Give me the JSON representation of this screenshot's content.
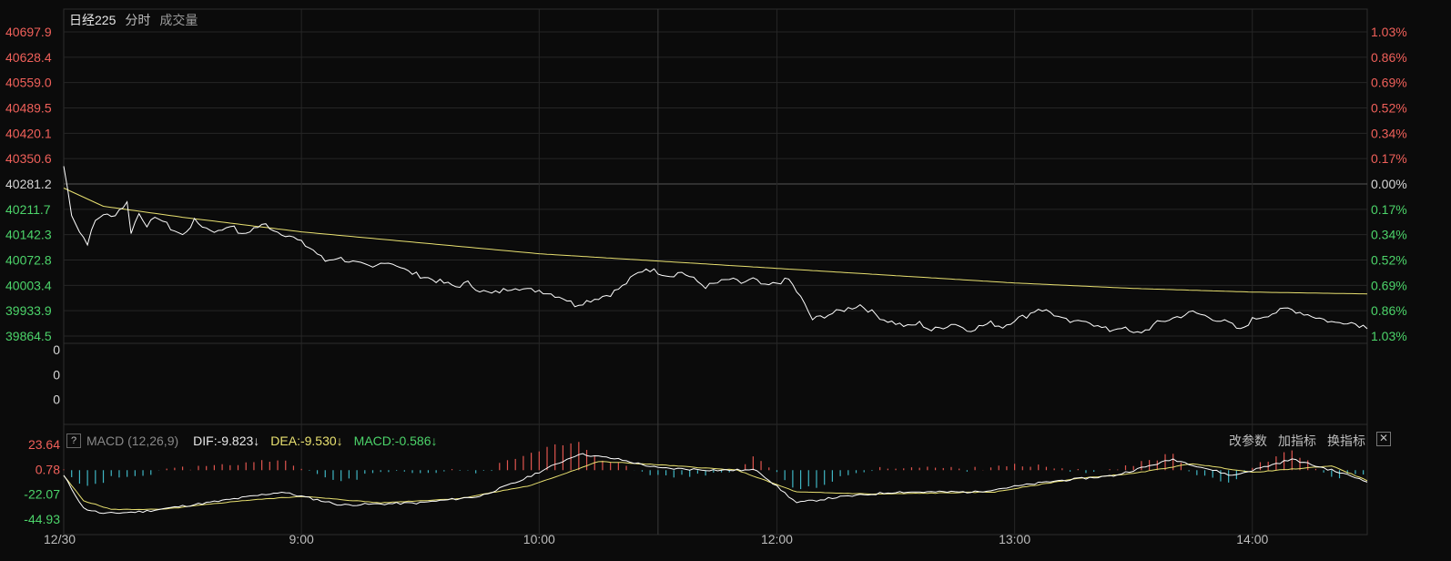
{
  "header": {
    "title": "日经225",
    "mode": "分时",
    "volume_tab": "成交量"
  },
  "colors": {
    "up": "#f0605a",
    "down": "#4cd46a",
    "neutral": "#d6d6d6",
    "price_line": "#ffffff",
    "avg_line": "#e8e070",
    "grid": "#262626",
    "macd_pos": "#e0554f",
    "macd_neg": "#3fb6c4"
  },
  "macd_header": {
    "help": "?",
    "label": "MACD (12,26,9)",
    "dif": "DIF:-9.823↓",
    "dea": "DEA:-9.530↓",
    "macd": "MACD:-0.586↓",
    "buttons": [
      "改参数",
      "加指标",
      "换指标"
    ],
    "close": "✕"
  },
  "chart_data": [
    {
      "type": "line",
      "name": "price",
      "y_ticks_left": [
        "40697.9",
        "40628.4",
        "40559.0",
        "40489.5",
        "40420.1",
        "40350.6",
        "40281.2",
        "40211.7",
        "40142.3",
        "40072.8",
        "40003.4",
        "39933.9",
        "39864.5"
      ],
      "y_ticks_right": [
        "1.03%",
        "0.86%",
        "0.69%",
        "0.52%",
        "0.34%",
        "0.17%",
        "0.00%",
        "0.17%",
        "0.34%",
        "0.52%",
        "0.69%",
        "0.86%",
        "1.03%"
      ],
      "ylim": [
        39864.5,
        40697.9
      ],
      "base": 40281.2,
      "x_ticks": [
        "12/30",
        "9:00",
        "10:00",
        "",
        "12:00",
        "13:00",
        "14:00"
      ],
      "x_tick_pos": [
        0,
        60,
        120,
        150,
        180,
        240,
        300
      ],
      "x_count": 330,
      "price_anchors": [
        [
          0,
          40330
        ],
        [
          2,
          40200
        ],
        [
          4,
          40150
        ],
        [
          6,
          40120
        ],
        [
          8,
          40180
        ],
        [
          10,
          40200
        ],
        [
          12,
          40190
        ],
        [
          14,
          40210
        ],
        [
          16,
          40230
        ],
        [
          17,
          40150
        ],
        [
          19,
          40200
        ],
        [
          21,
          40170
        ],
        [
          24,
          40190
        ],
        [
          27,
          40160
        ],
        [
          30,
          40140
        ],
        [
          33,
          40180
        ],
        [
          36,
          40160
        ],
        [
          39,
          40150
        ],
        [
          42,
          40170
        ],
        [
          45,
          40140
        ],
        [
          48,
          40160
        ],
        [
          51,
          40170
        ],
        [
          54,
          40150
        ],
        [
          57,
          40140
        ],
        [
          60,
          40120
        ],
        [
          63,
          40100
        ],
        [
          66,
          40070
        ],
        [
          69,
          40080
        ],
        [
          72,
          40070
        ],
        [
          75,
          40060
        ],
        [
          78,
          40050
        ],
        [
          81,
          40070
        ],
        [
          84,
          40060
        ],
        [
          87,
          40040
        ],
        [
          90,
          40030
        ],
        [
          93,
          40020
        ],
        [
          96,
          40010
        ],
        [
          99,
          40000
        ],
        [
          102,
          40010
        ],
        [
          105,
          39990
        ],
        [
          108,
          39980
        ],
        [
          111,
          39990
        ],
        [
          114,
          40000
        ],
        [
          117,
          39990
        ],
        [
          120,
          39990
        ],
        [
          123,
          39980
        ],
        [
          126,
          39970
        ],
        [
          129,
          39950
        ],
        [
          132,
          39960
        ],
        [
          135,
          39970
        ],
        [
          138,
          39980
        ],
        [
          141,
          40000
        ],
        [
          144,
          40030
        ],
        [
          147,
          40050
        ],
        [
          150,
          40040
        ],
        [
          153,
          40030
        ],
        [
          156,
          40040
        ],
        [
          159,
          40020
        ],
        [
          162,
          40000
        ],
        [
          165,
          40010
        ],
        [
          168,
          40020
        ],
        [
          171,
          40010
        ],
        [
          174,
          40020
        ],
        [
          177,
          40000
        ],
        [
          180,
          40010
        ],
        [
          183,
          40020
        ],
        [
          186,
          39970
        ],
        [
          189,
          39910
        ],
        [
          192,
          39920
        ],
        [
          195,
          39930
        ],
        [
          198,
          39940
        ],
        [
          201,
          39950
        ],
        [
          204,
          39930
        ],
        [
          207,
          39910
        ],
        [
          210,
          39900
        ],
        [
          213,
          39890
        ],
        [
          216,
          39900
        ],
        [
          219,
          39880
        ],
        [
          222,
          39890
        ],
        [
          225,
          39900
        ],
        [
          228,
          39880
        ],
        [
          231,
          39890
        ],
        [
          234,
          39900
        ],
        [
          237,
          39890
        ],
        [
          240,
          39910
        ],
        [
          243,
          39920
        ],
        [
          246,
          39940
        ],
        [
          249,
          39930
        ],
        [
          252,
          39910
        ],
        [
          255,
          39900
        ],
        [
          258,
          39910
        ],
        [
          261,
          39890
        ],
        [
          264,
          39880
        ],
        [
          267,
          39890
        ],
        [
          270,
          39870
        ],
        [
          273,
          39880
        ],
        [
          276,
          39900
        ],
        [
          279,
          39910
        ],
        [
          282,
          39920
        ],
        [
          285,
          39930
        ],
        [
          288,
          39920
        ],
        [
          291,
          39910
        ],
        [
          294,
          39900
        ],
        [
          297,
          39880
        ],
        [
          300,
          39910
        ],
        [
          303,
          39920
        ],
        [
          306,
          39930
        ],
        [
          309,
          39940
        ],
        [
          312,
          39930
        ],
        [
          315,
          39920
        ],
        [
          318,
          39910
        ],
        [
          321,
          39900
        ],
        [
          324,
          39905
        ],
        [
          327,
          39895
        ],
        [
          329,
          39890
        ]
      ],
      "avg_anchors": [
        [
          0,
          40270
        ],
        [
          10,
          40220
        ],
        [
          30,
          40190
        ],
        [
          60,
          40150
        ],
        [
          90,
          40120
        ],
        [
          120,
          40090
        ],
        [
          150,
          40070
        ],
        [
          180,
          40050
        ],
        [
          210,
          40030
        ],
        [
          240,
          40010
        ],
        [
          270,
          39995
        ],
        [
          300,
          39985
        ],
        [
          329,
          39980
        ]
      ]
    },
    {
      "type": "bar",
      "name": "volume",
      "y_ticks": [
        "0",
        "0",
        "0"
      ],
      "values": []
    },
    {
      "type": "line",
      "name": "macd",
      "y_ticks": [
        "23.64",
        "0.78",
        "-22.07",
        "-44.93"
      ],
      "ylim": [
        -44.93,
        23.64
      ],
      "dif_anchors": [
        [
          0,
          -5
        ],
        [
          5,
          -35
        ],
        [
          10,
          -40
        ],
        [
          20,
          -38
        ],
        [
          40,
          -28
        ],
        [
          55,
          -20
        ],
        [
          70,
          -32
        ],
        [
          90,
          -30
        ],
        [
          105,
          -24
        ],
        [
          115,
          -10
        ],
        [
          130,
          15
        ],
        [
          140,
          10
        ],
        [
          150,
          2
        ],
        [
          165,
          0
        ],
        [
          175,
          0
        ],
        [
          185,
          -30
        ],
        [
          195,
          -25
        ],
        [
          210,
          -20
        ],
        [
          230,
          -20
        ],
        [
          250,
          -10
        ],
        [
          265,
          -5
        ],
        [
          280,
          10
        ],
        [
          295,
          -5
        ],
        [
          310,
          10
        ],
        [
          320,
          0
        ],
        [
          329,
          -10
        ]
      ],
      "dea_anchors": [
        [
          0,
          -5
        ],
        [
          5,
          -28
        ],
        [
          12,
          -36
        ],
        [
          25,
          -36
        ],
        [
          45,
          -28
        ],
        [
          60,
          -24
        ],
        [
          80,
          -30
        ],
        [
          100,
          -26
        ],
        [
          118,
          -14
        ],
        [
          135,
          8
        ],
        [
          150,
          5
        ],
        [
          170,
          0
        ],
        [
          185,
          -20
        ],
        [
          205,
          -22
        ],
        [
          235,
          -20
        ],
        [
          255,
          -8
        ],
        [
          270,
          -3
        ],
        [
          285,
          6
        ],
        [
          300,
          -2
        ],
        [
          320,
          4
        ],
        [
          329,
          -9.5
        ]
      ]
    }
  ]
}
